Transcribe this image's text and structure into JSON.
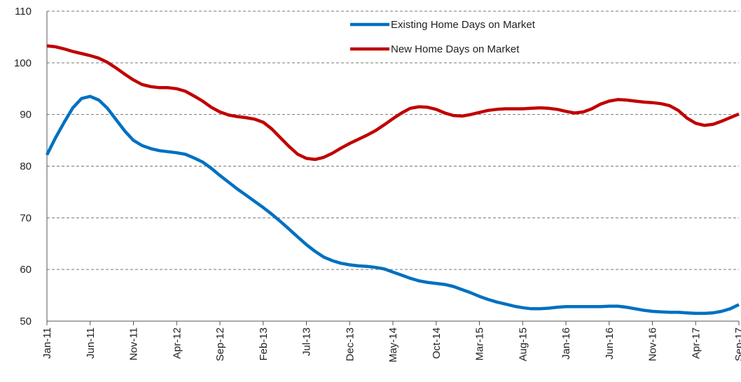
{
  "chart_data": {
    "type": "line",
    "categories": [
      "Jan-11",
      null,
      null,
      null,
      null,
      "Jun-11",
      null,
      null,
      null,
      null,
      "Nov-11",
      null,
      null,
      null,
      null,
      "Apr-12",
      null,
      null,
      null,
      null,
      "Sep-12",
      null,
      null,
      null,
      null,
      "Feb-13",
      null,
      null,
      null,
      null,
      "Jul-13",
      null,
      null,
      null,
      null,
      "Dec-13",
      null,
      null,
      null,
      null,
      "May-14",
      null,
      null,
      null,
      null,
      "Oct-14",
      null,
      null,
      null,
      null,
      "Mar-15",
      null,
      null,
      null,
      null,
      "Aug-15",
      null,
      null,
      null,
      null,
      "Jan-16",
      null,
      null,
      null,
      null,
      "Jun-16",
      null,
      null,
      null,
      null,
      "Nov-16",
      null,
      null,
      null,
      null,
      "Apr-17",
      null,
      null,
      null,
      null,
      "Sep-17"
    ],
    "series": [
      {
        "name": "Existing Home Days on Market",
        "color": "#0070c0",
        "values": [
          82.2,
          85.5,
          88.5,
          91.3,
          93.1,
          93.5,
          92.8,
          91.2,
          89,
          86.8,
          85,
          84,
          83.4,
          83,
          82.8,
          82.6,
          82.3,
          81.6,
          80.8,
          79.6,
          78.2,
          76.9,
          75.6,
          74.4,
          73.2,
          72,
          70.7,
          69.3,
          67.8,
          66.3,
          64.8,
          63.5,
          62.4,
          61.7,
          61.2,
          60.9,
          60.7,
          60.6,
          60.4,
          60.1,
          59.5,
          58.9,
          58.3,
          57.8,
          57.5,
          57.3,
          57.1,
          56.7,
          56.1,
          55.5,
          54.8,
          54.2,
          53.7,
          53.3,
          52.9,
          52.6,
          52.4,
          52.4,
          52.5,
          52.7,
          52.8,
          52.8,
          52.8,
          52.8,
          52.8,
          52.9,
          52.9,
          52.7,
          52.4,
          52.1,
          51.9,
          51.8,
          51.7,
          51.7,
          51.6,
          51.5,
          51.5,
          51.6,
          51.9,
          52.4,
          53.2
        ]
      },
      {
        "name": "New Home Days on Market",
        "color": "#c00000",
        "values": [
          103.3,
          103.1,
          102.7,
          102.2,
          101.8,
          101.4,
          100.9,
          100.1,
          99,
          97.8,
          96.7,
          95.8,
          95.4,
          95.2,
          95.2,
          95,
          94.5,
          93.6,
          92.6,
          91.4,
          90.5,
          89.9,
          89.6,
          89.4,
          89.1,
          88.5,
          87.2,
          85.5,
          83.8,
          82.3,
          81.5,
          81.3,
          81.7,
          82.5,
          83.5,
          84.4,
          85.2,
          86,
          86.9,
          88,
          89.2,
          90.3,
          91.2,
          91.5,
          91.4,
          91,
          90.3,
          89.8,
          89.7,
          90,
          90.4,
          90.8,
          91,
          91.1,
          91.1,
          91.1,
          91.2,
          91.3,
          91.2,
          91,
          90.6,
          90.3,
          90.5,
          91.1,
          92,
          92.6,
          92.9,
          92.8,
          92.6,
          92.4,
          92.3,
          92.1,
          91.7,
          90.8,
          89.3,
          88.3,
          87.9,
          88.1,
          88.7,
          89.4,
          90.1
        ]
      }
    ],
    "ylim": [
      50,
      110
    ],
    "yticks": [
      50,
      60,
      70,
      80,
      90,
      100,
      110
    ],
    "grid": true,
    "legend": "top-right"
  }
}
